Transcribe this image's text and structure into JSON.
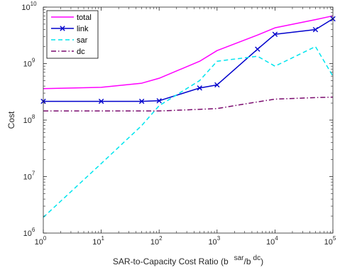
{
  "chart_data": {
    "type": "line",
    "xlabel": "SAR-to-Capacity Cost Ratio (b",
    "xlabel_sup1": "sar",
    "xlabel_mid": "/b",
    "xlabel_sup2": "dc",
    "xlabel_end": ")",
    "ylabel": "Cost",
    "xscale": "log",
    "yscale": "log",
    "xlim": [
      1,
      100000
    ],
    "ylim": [
      1000000,
      10000000000
    ],
    "x_ticks": [
      {
        "base": "10",
        "exp": "0",
        "value": 1
      },
      {
        "base": "10",
        "exp": "1",
        "value": 10
      },
      {
        "base": "10",
        "exp": "2",
        "value": 100
      },
      {
        "base": "10",
        "exp": "3",
        "value": 1000
      },
      {
        "base": "10",
        "exp": "4",
        "value": 10000
      },
      {
        "base": "10",
        "exp": "5",
        "value": 100000
      }
    ],
    "y_ticks": [
      {
        "base": "10",
        "exp": "6",
        "value": 1000000
      },
      {
        "base": "10",
        "exp": "7",
        "value": 10000000
      },
      {
        "base": "10",
        "exp": "8",
        "value": 100000000
      },
      {
        "base": "10",
        "exp": "9",
        "value": 1000000000
      },
      {
        "base": "10",
        "exp": "10",
        "value": 10000000000
      }
    ],
    "grid": false,
    "legend_position": "top-left",
    "series": [
      {
        "name": "total",
        "color": "#ff00ff",
        "style": "solid",
        "marker": "none",
        "x": [
          1,
          10,
          50,
          100,
          500,
          1000,
          5000,
          10000,
          50000,
          100000
        ],
        "y": [
          360000000,
          380000000,
          450000000,
          550000000,
          1100000000,
          1700000000,
          3200000000,
          4300000000,
          6000000000,
          7000000000
        ]
      },
      {
        "name": "link",
        "color": "#0000cc",
        "style": "solid",
        "marker": "x",
        "x": [
          1,
          10,
          50,
          100,
          500,
          1000,
          5000,
          10000,
          50000,
          100000
        ],
        "y": [
          215000000,
          215000000,
          215000000,
          220000000,
          370000000,
          420000000,
          1800000000,
          3300000000,
          4000000000,
          6200000000
        ]
      },
      {
        "name": "sar",
        "color": "#00e5ee",
        "style": "dashed",
        "marker": "none",
        "x": [
          1,
          10,
          50,
          100,
          500,
          1000,
          5000,
          10000,
          50000,
          100000
        ],
        "y": [
          1900000,
          17000000,
          80000000,
          180000000,
          500000000,
          1100000000,
          1350000000,
          900000000,
          2000000000,
          600000000
        ]
      },
      {
        "name": "dc",
        "color": "#7a0a6e",
        "style": "dashdot",
        "marker": "none",
        "x": [
          1,
          10,
          50,
          100,
          500,
          1000,
          5000,
          10000,
          50000,
          100000
        ],
        "y": [
          145000000,
          145000000,
          145000000,
          145000000,
          155000000,
          160000000,
          210000000,
          235000000,
          250000000,
          255000000
        ]
      }
    ]
  }
}
